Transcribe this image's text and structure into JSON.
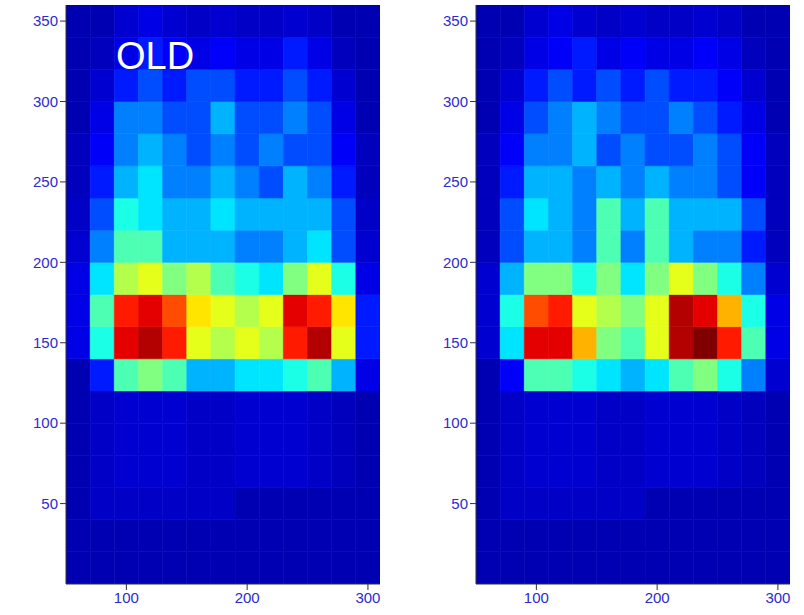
{
  "chart_data": [
    {
      "type": "heatmap",
      "title": "OLD",
      "xlim": [
        50,
        310
      ],
      "ylim": [
        0,
        360
      ],
      "xticks": [
        100,
        200,
        300
      ],
      "yticks": [
        50,
        100,
        150,
        200,
        250,
        300,
        350
      ],
      "x_edges": [
        50,
        70,
        90,
        110,
        130,
        150,
        170,
        190,
        210,
        230,
        250,
        270,
        290,
        310
      ],
      "y_edges": [
        0,
        20,
        40,
        60,
        80,
        100,
        120,
        140,
        160,
        180,
        200,
        220,
        240,
        260,
        280,
        300,
        320,
        340,
        360
      ],
      "zlim": [
        0,
        1
      ],
      "z": [
        [
          0.05,
          0.05,
          0.05,
          0.05,
          0.05,
          0.05,
          0.05,
          0.05,
          0.05,
          0.05,
          0.05,
          0.05,
          0.05
        ],
        [
          0.05,
          0.05,
          0.05,
          0.05,
          0.05,
          0.05,
          0.05,
          0.05,
          0.05,
          0.05,
          0.05,
          0.05,
          0.05
        ],
        [
          0.05,
          0.07,
          0.07,
          0.07,
          0.07,
          0.07,
          0.07,
          0.05,
          0.05,
          0.05,
          0.05,
          0.05,
          0.05
        ],
        [
          0.05,
          0.07,
          0.08,
          0.08,
          0.08,
          0.07,
          0.07,
          0.08,
          0.08,
          0.08,
          0.07,
          0.06,
          0.05
        ],
        [
          0.05,
          0.07,
          0.08,
          0.08,
          0.08,
          0.07,
          0.07,
          0.08,
          0.08,
          0.08,
          0.07,
          0.06,
          0.05
        ],
        [
          0.05,
          0.07,
          0.08,
          0.08,
          0.08,
          0.07,
          0.07,
          0.08,
          0.08,
          0.08,
          0.07,
          0.06,
          0.05
        ],
        [
          0.05,
          0.15,
          0.45,
          0.5,
          0.45,
          0.3,
          0.3,
          0.35,
          0.35,
          0.4,
          0.45,
          0.3,
          0.1
        ],
        [
          0.1,
          0.4,
          0.9,
          0.95,
          0.85,
          0.6,
          0.55,
          0.6,
          0.55,
          0.85,
          0.95,
          0.6,
          0.15
        ],
        [
          0.1,
          0.45,
          0.85,
          0.9,
          0.8,
          0.65,
          0.6,
          0.55,
          0.6,
          0.9,
          0.85,
          0.65,
          0.15
        ],
        [
          0.1,
          0.35,
          0.55,
          0.6,
          0.5,
          0.55,
          0.45,
          0.4,
          0.35,
          0.5,
          0.6,
          0.4,
          0.1
        ],
        [
          0.08,
          0.25,
          0.45,
          0.45,
          0.3,
          0.3,
          0.3,
          0.25,
          0.25,
          0.3,
          0.35,
          0.2,
          0.08
        ],
        [
          0.07,
          0.2,
          0.4,
          0.35,
          0.3,
          0.3,
          0.35,
          0.3,
          0.3,
          0.3,
          0.3,
          0.2,
          0.07
        ],
        [
          0.06,
          0.15,
          0.3,
          0.35,
          0.25,
          0.25,
          0.3,
          0.25,
          0.2,
          0.3,
          0.25,
          0.15,
          0.06
        ],
        [
          0.06,
          0.12,
          0.25,
          0.3,
          0.25,
          0.2,
          0.25,
          0.2,
          0.25,
          0.2,
          0.2,
          0.12,
          0.06
        ],
        [
          0.05,
          0.1,
          0.25,
          0.25,
          0.2,
          0.2,
          0.3,
          0.2,
          0.2,
          0.25,
          0.2,
          0.1,
          0.05
        ],
        [
          0.05,
          0.08,
          0.15,
          0.2,
          0.15,
          0.2,
          0.2,
          0.15,
          0.15,
          0.2,
          0.15,
          0.08,
          0.05
        ],
        [
          0.05,
          0.06,
          0.1,
          0.15,
          0.12,
          0.1,
          0.12,
          0.1,
          0.1,
          0.15,
          0.1,
          0.06,
          0.05
        ],
        [
          0.05,
          0.05,
          0.08,
          0.1,
          0.08,
          0.07,
          0.08,
          0.07,
          0.07,
          0.08,
          0.07,
          0.05,
          0.05
        ]
      ]
    },
    {
      "type": "heatmap",
      "xlim": [
        50,
        310
      ],
      "ylim": [
        0,
        360
      ],
      "xticks": [
        100,
        200,
        300
      ],
      "yticks": [
        50,
        100,
        150,
        200,
        250,
        300,
        350
      ],
      "x_edges": [
        50,
        70,
        90,
        110,
        130,
        150,
        170,
        190,
        210,
        230,
        250,
        270,
        290,
        310
      ],
      "y_edges": [
        0,
        20,
        40,
        60,
        80,
        100,
        120,
        140,
        160,
        180,
        200,
        220,
        240,
        260,
        280,
        300,
        320,
        340,
        360
      ],
      "zlim": [
        0,
        1
      ],
      "z": [
        [
          0.05,
          0.05,
          0.05,
          0.05,
          0.05,
          0.05,
          0.05,
          0.05,
          0.05,
          0.05,
          0.05,
          0.05,
          0.05
        ],
        [
          0.05,
          0.05,
          0.05,
          0.05,
          0.05,
          0.05,
          0.05,
          0.05,
          0.05,
          0.05,
          0.05,
          0.05,
          0.05
        ],
        [
          0.05,
          0.07,
          0.07,
          0.07,
          0.07,
          0.07,
          0.07,
          0.05,
          0.05,
          0.05,
          0.05,
          0.05,
          0.05
        ],
        [
          0.05,
          0.07,
          0.08,
          0.08,
          0.08,
          0.07,
          0.07,
          0.08,
          0.08,
          0.08,
          0.07,
          0.06,
          0.05
        ],
        [
          0.05,
          0.07,
          0.08,
          0.08,
          0.08,
          0.07,
          0.07,
          0.08,
          0.08,
          0.08,
          0.07,
          0.06,
          0.05
        ],
        [
          0.05,
          0.07,
          0.08,
          0.08,
          0.08,
          0.07,
          0.07,
          0.08,
          0.08,
          0.08,
          0.07,
          0.06,
          0.05
        ],
        [
          0.05,
          0.12,
          0.45,
          0.45,
          0.4,
          0.35,
          0.3,
          0.35,
          0.45,
          0.5,
          0.4,
          0.25,
          0.08
        ],
        [
          0.08,
          0.35,
          0.9,
          0.9,
          0.7,
          0.5,
          0.45,
          0.6,
          0.95,
          1.0,
          0.85,
          0.45,
          0.1
        ],
        [
          0.08,
          0.4,
          0.8,
          0.85,
          0.6,
          0.55,
          0.5,
          0.6,
          0.95,
          0.9,
          0.7,
          0.4,
          0.1
        ],
        [
          0.08,
          0.3,
          0.5,
          0.5,
          0.4,
          0.5,
          0.35,
          0.5,
          0.6,
          0.5,
          0.4,
          0.25,
          0.08
        ],
        [
          0.06,
          0.2,
          0.3,
          0.3,
          0.25,
          0.45,
          0.25,
          0.45,
          0.3,
          0.25,
          0.25,
          0.15,
          0.06
        ],
        [
          0.06,
          0.2,
          0.35,
          0.3,
          0.25,
          0.45,
          0.3,
          0.45,
          0.3,
          0.3,
          0.3,
          0.2,
          0.06
        ],
        [
          0.06,
          0.15,
          0.3,
          0.3,
          0.25,
          0.3,
          0.25,
          0.3,
          0.25,
          0.25,
          0.2,
          0.12,
          0.06
        ],
        [
          0.06,
          0.12,
          0.25,
          0.25,
          0.3,
          0.2,
          0.25,
          0.2,
          0.2,
          0.25,
          0.2,
          0.12,
          0.06
        ],
        [
          0.05,
          0.1,
          0.2,
          0.25,
          0.3,
          0.25,
          0.2,
          0.2,
          0.25,
          0.2,
          0.15,
          0.1,
          0.05
        ],
        [
          0.05,
          0.08,
          0.15,
          0.2,
          0.15,
          0.2,
          0.15,
          0.2,
          0.15,
          0.15,
          0.12,
          0.08,
          0.05
        ],
        [
          0.05,
          0.06,
          0.1,
          0.12,
          0.15,
          0.1,
          0.12,
          0.1,
          0.1,
          0.12,
          0.1,
          0.06,
          0.05
        ],
        [
          0.05,
          0.05,
          0.08,
          0.1,
          0.08,
          0.07,
          0.08,
          0.07,
          0.07,
          0.08,
          0.07,
          0.05,
          0.05
        ]
      ]
    }
  ]
}
